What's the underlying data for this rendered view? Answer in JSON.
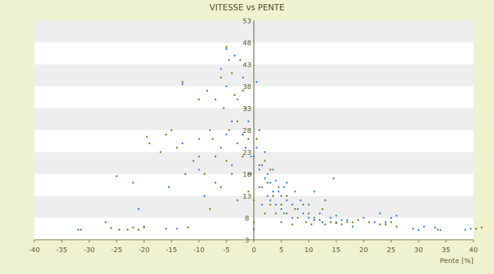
{
  "chart_data": {
    "type": "scatter",
    "title": "VITESSE vs PENTE",
    "xlabel": "Pente [%]",
    "ylabel": "",
    "xlim": [
      -40,
      40
    ],
    "ylim": [
      3,
      53
    ],
    "xticks": [
      -40,
      -35,
      -30,
      -25,
      -20,
      -15,
      -10,
      -5,
      0,
      5,
      10,
      15,
      20,
      25,
      30,
      35,
      40
    ],
    "yticks": [
      3,
      8,
      13,
      18,
      23,
      28,
      33,
      38,
      43,
      48,
      53
    ],
    "band_colors": [
      "#ffffff",
      "#eeeeee"
    ],
    "plot_bg": "#ffffff",
    "series": [
      {
        "color": "#2f7fd8",
        "marker": "dot",
        "values": [
          [
            -32,
            5.3
          ],
          [
            -31.5,
            5.3
          ],
          [
            -25,
            17.5
          ],
          [
            -22,
            16
          ],
          [
            -21,
            10
          ],
          [
            -20,
            5.8
          ],
          [
            -16,
            5.5
          ],
          [
            -15.5,
            15
          ],
          [
            -14,
            5.5
          ],
          [
            -13,
            25
          ],
          [
            -13,
            38.5
          ],
          [
            -10,
            26
          ],
          [
            -10,
            19
          ],
          [
            -9,
            13
          ],
          [
            -8,
            28
          ],
          [
            -7,
            35
          ],
          [
            -7,
            16
          ],
          [
            -6,
            42
          ],
          [
            -6,
            24
          ],
          [
            -5,
            46.5
          ],
          [
            -5,
            38
          ],
          [
            -5,
            27
          ],
          [
            -4.5,
            44
          ],
          [
            -4,
            30
          ],
          [
            -4,
            20
          ],
          [
            -3.5,
            45
          ],
          [
            -3,
            35
          ],
          [
            -3,
            12
          ],
          [
            -2,
            40
          ],
          [
            -2,
            27
          ],
          [
            -1.5,
            24
          ],
          [
            -1,
            30
          ],
          [
            -1,
            18
          ],
          [
            -0.5,
            22
          ],
          [
            0,
            22
          ],
          [
            0,
            5.5
          ],
          [
            0.5,
            39
          ],
          [
            0.5,
            24
          ],
          [
            1,
            19
          ],
          [
            1,
            15
          ],
          [
            1.5,
            20
          ],
          [
            1.5,
            11
          ],
          [
            2,
            23
          ],
          [
            2,
            17
          ],
          [
            2.5,
            18
          ],
          [
            2.5,
            13
          ],
          [
            3,
            16
          ],
          [
            3,
            12
          ],
          [
            3.5,
            19
          ],
          [
            3.5,
            14
          ],
          [
            4,
            16.5
          ],
          [
            4,
            11
          ],
          [
            4.5,
            14
          ],
          [
            5,
            13
          ],
          [
            5,
            10
          ],
          [
            5.5,
            15
          ],
          [
            5.5,
            9
          ],
          [
            6,
            12
          ],
          [
            6,
            16
          ],
          [
            7,
            11
          ],
          [
            7,
            8
          ],
          [
            7.5,
            14
          ],
          [
            8,
            10
          ],
          [
            8.5,
            12
          ],
          [
            9,
            9
          ],
          [
            10,
            11
          ],
          [
            10,
            8
          ],
          [
            11,
            14
          ],
          [
            11,
            7.5
          ],
          [
            12,
            9
          ],
          [
            12.5,
            7
          ],
          [
            13,
            12
          ],
          [
            14,
            8
          ],
          [
            14.5,
            17
          ],
          [
            15,
            8.5
          ],
          [
            15,
            7
          ],
          [
            16,
            7.5
          ],
          [
            17,
            7.5
          ],
          [
            18,
            6
          ],
          [
            20,
            8
          ],
          [
            22,
            7
          ],
          [
            23,
            9
          ],
          [
            24,
            7
          ],
          [
            25,
            8
          ],
          [
            26,
            8.5
          ],
          [
            29,
            5.5
          ],
          [
            30,
            5.2
          ],
          [
            31,
            6
          ],
          [
            33,
            5.8
          ],
          [
            34,
            5.2
          ],
          [
            38.5,
            5.3
          ],
          [
            39.5,
            5.5
          ]
        ]
      },
      {
        "color": "#7a7a10",
        "marker": "dot",
        "values": [
          [
            -27,
            7
          ],
          [
            -26,
            5.7
          ],
          [
            -24.5,
            5.3
          ],
          [
            -23,
            5.3
          ],
          [
            -22,
            5.8
          ],
          [
            -21,
            5.3
          ],
          [
            -20,
            6
          ],
          [
            -19.5,
            26.5
          ],
          [
            -19,
            25
          ],
          [
            -17,
            23
          ],
          [
            -16,
            27
          ],
          [
            -15,
            28
          ],
          [
            -14,
            24
          ],
          [
            -13,
            39
          ],
          [
            -12.5,
            18
          ],
          [
            -12,
            5.8
          ],
          [
            -11,
            21
          ],
          [
            -10,
            35
          ],
          [
            -10,
            22
          ],
          [
            -9,
            18
          ],
          [
            -8.5,
            37
          ],
          [
            -8,
            10
          ],
          [
            -7.5,
            26
          ],
          [
            -7,
            22
          ],
          [
            -6,
            40
          ],
          [
            -6,
            15
          ],
          [
            -5.5,
            33
          ],
          [
            -5,
            47
          ],
          [
            -5,
            21
          ],
          [
            -4.5,
            28
          ],
          [
            -4,
            41
          ],
          [
            -4,
            18
          ],
          [
            -3.5,
            36
          ],
          [
            -3,
            30
          ],
          [
            -3,
            25
          ],
          [
            -2.5,
            44
          ],
          [
            -2,
            37
          ],
          [
            -2,
            22
          ],
          [
            -1.5,
            33
          ],
          [
            -1,
            26
          ],
          [
            -1,
            14
          ],
          [
            -0.5,
            18
          ],
          [
            0,
            12
          ],
          [
            0,
            7
          ],
          [
            0,
            5.3
          ],
          [
            0.5,
            26
          ],
          [
            1,
            28
          ],
          [
            1,
            20
          ],
          [
            1.5,
            15
          ],
          [
            2,
            21
          ],
          [
            2,
            9
          ],
          [
            2.5,
            16
          ],
          [
            3,
            11
          ],
          [
            3,
            19
          ],
          [
            3.5,
            13
          ],
          [
            4,
            9
          ],
          [
            4.5,
            15
          ],
          [
            5,
            11
          ],
          [
            5,
            7
          ],
          [
            6,
            13
          ],
          [
            6,
            9
          ],
          [
            7,
            6.5
          ],
          [
            7.5,
            10
          ],
          [
            8,
            8
          ],
          [
            9,
            11
          ],
          [
            9.5,
            7
          ],
          [
            10,
            9
          ],
          [
            10.5,
            6.5
          ],
          [
            11,
            8
          ],
          [
            12,
            7.5
          ],
          [
            12.5,
            10
          ],
          [
            13,
            6.5
          ],
          [
            14,
            7
          ],
          [
            15,
            6.8
          ],
          [
            16,
            6.5
          ],
          [
            17,
            7
          ],
          [
            18,
            7
          ],
          [
            19,
            7.5
          ],
          [
            21,
            7
          ],
          [
            23,
            6.5
          ],
          [
            24,
            6.5
          ],
          [
            25,
            7
          ],
          [
            26,
            6
          ],
          [
            33.5,
            5.3
          ],
          [
            40.5,
            5.5
          ],
          [
            41.5,
            5.8
          ]
        ]
      }
    ]
  }
}
